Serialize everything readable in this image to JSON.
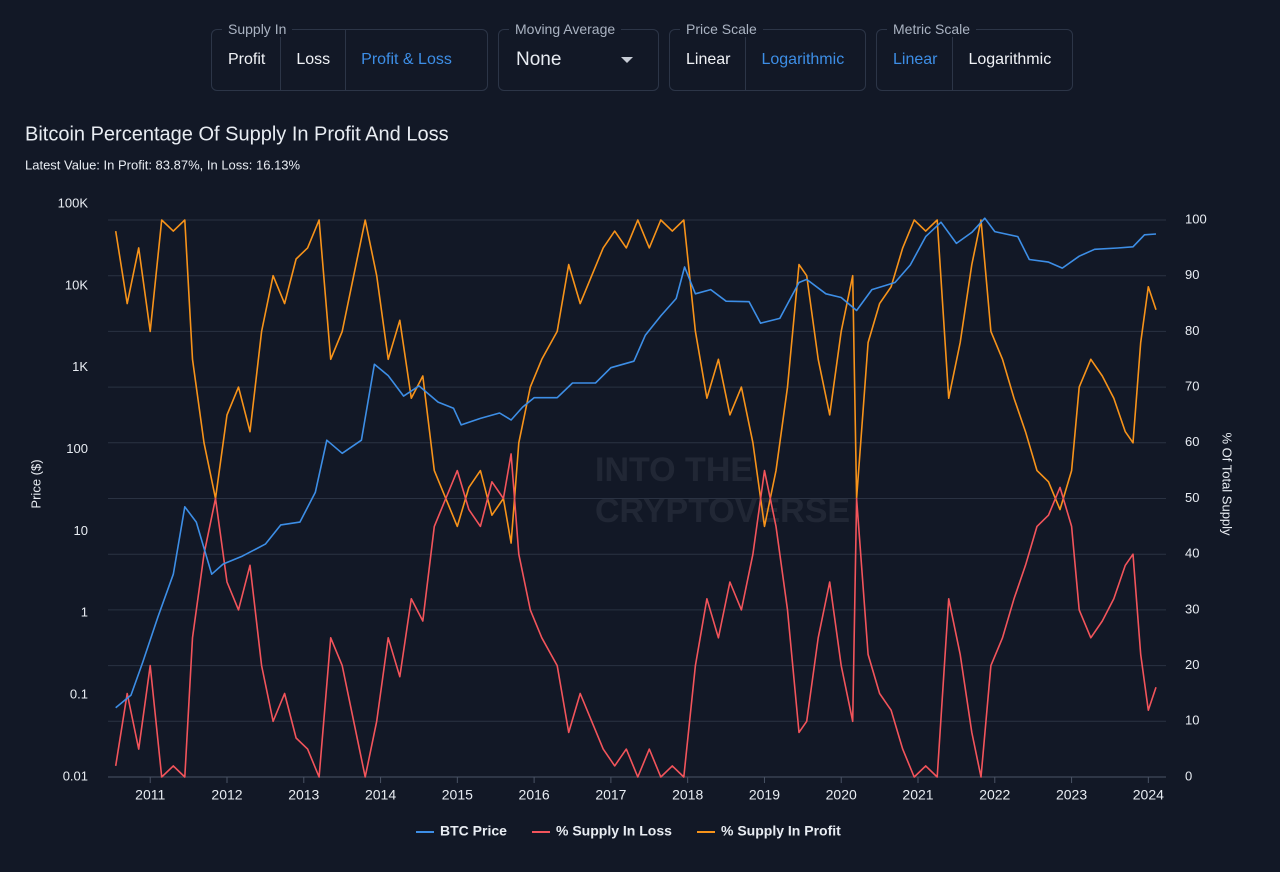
{
  "controls": [
    {
      "label": "Supply In",
      "options": [
        "Profit",
        "Loss",
        "Profit & Loss"
      ],
      "selected": 2
    },
    {
      "label": "Moving Average",
      "value": "None"
    },
    {
      "label": "Price Scale",
      "options": [
        "Linear",
        "Logarithmic"
      ],
      "selected": 1
    },
    {
      "label": "Metric Scale",
      "options": [
        "Linear",
        "Logarithmic"
      ],
      "selected": 0
    }
  ],
  "chart_data": {
    "type": "line",
    "title": "Bitcoin Percentage Of Supply In Profit And Loss",
    "subtitle": "Latest Value: In Profit: 83.87%, In Loss: 16.13%",
    "y_label": "Price ($)",
    "y2_label": "% Of Total Supply",
    "watermark": [
      "INTO THE",
      "CRYPTOVERSE"
    ],
    "xlim": [
      2010.45,
      2024.23
    ],
    "xticks": [
      2011,
      2012,
      2013,
      2014,
      2015,
      2016,
      2017,
      2018,
      2019,
      2020,
      2021,
      2022,
      2023,
      2024
    ],
    "ylim": [
      0.01,
      100000
    ],
    "y_scale": "log",
    "yticks": [
      0.01,
      0.1,
      1,
      10,
      100,
      {
        "value": 1000,
        "label": "1K"
      },
      {
        "value": 10000,
        "label": "10K"
      },
      {
        "value": 100000,
        "label": "100K"
      }
    ],
    "y2lim": [
      0,
      100
    ],
    "y2ticks": [
      0,
      10,
      20,
      30,
      40,
      50,
      60,
      70,
      80,
      90,
      100
    ],
    "grid": true,
    "legend": "bottom",
    "series": [
      {
        "name": "BTC Price",
        "color": "#3d8ee6",
        "x": [
          2010.55,
          2010.75,
          2010.9,
          2011.1,
          2011.3,
          2011.45,
          2011.6,
          2011.8,
          2011.95,
          2012.2,
          2012.5,
          2012.7,
          2012.95,
          2013.15,
          2013.3,
          2013.5,
          2013.75,
          2013.92,
          2014.1,
          2014.3,
          2014.5,
          2014.75,
          2014.95,
          2015.05,
          2015.3,
          2015.55,
          2015.7,
          2015.85,
          2016.0,
          2016.3,
          2016.5,
          2016.8,
          2017.0,
          2017.3,
          2017.45,
          2017.65,
          2017.85,
          2017.96,
          2018.1,
          2018.3,
          2018.5,
          2018.8,
          2018.95,
          2019.2,
          2019.45,
          2019.55,
          2019.8,
          2020.0,
          2020.2,
          2020.4,
          2020.7,
          2020.9,
          2021.1,
          2021.3,
          2021.5,
          2021.7,
          2021.87,
          2022.0,
          2022.3,
          2022.45,
          2022.7,
          2022.88,
          2023.1,
          2023.3,
          2023.6,
          2023.8,
          2023.95,
          2024.1
        ],
        "values": [
          0.07,
          0.1,
          0.25,
          0.9,
          3,
          20,
          13,
          3,
          4,
          5,
          7,
          12,
          13,
          30,
          130,
          90,
          130,
          1100,
          800,
          450,
          600,
          380,
          320,
          200,
          240,
          280,
          230,
          330,
          430,
          430,
          650,
          650,
          1000,
          1200,
          2500,
          4300,
          7000,
          17000,
          8000,
          9000,
          6500,
          6400,
          3500,
          4000,
          11000,
          12000,
          8000,
          7200,
          5000,
          9000,
          11000,
          18000,
          40000,
          60000,
          33000,
          45000,
          67000,
          46000,
          40000,
          21000,
          19500,
          16500,
          23000,
          28000,
          29000,
          30000,
          42000,
          43000
        ]
      },
      {
        "name": "% Supply In Loss",
        "color": "#f2545b",
        "axis": "y2",
        "x": [
          2010.55,
          2010.7,
          2010.85,
          2011.0,
          2011.15,
          2011.3,
          2011.45,
          2011.55,
          2011.7,
          2011.85,
          2012.0,
          2012.15,
          2012.3,
          2012.45,
          2012.6,
          2012.75,
          2012.9,
          2013.05,
          2013.2,
          2013.35,
          2013.5,
          2013.65,
          2013.8,
          2013.95,
          2014.1,
          2014.25,
          2014.4,
          2014.55,
          2014.7,
          2014.85,
          2015.0,
          2015.15,
          2015.3,
          2015.45,
          2015.6,
          2015.7,
          2015.8,
          2015.95,
          2016.1,
          2016.3,
          2016.45,
          2016.6,
          2016.75,
          2016.9,
          2017.05,
          2017.2,
          2017.35,
          2017.5,
          2017.65,
          2017.8,
          2017.95,
          2018.1,
          2018.25,
          2018.4,
          2018.55,
          2018.7,
          2018.85,
          2019.0,
          2019.15,
          2019.3,
          2019.45,
          2019.55,
          2019.7,
          2019.85,
          2020.0,
          2020.15,
          2020.2,
          2020.35,
          2020.5,
          2020.65,
          2020.8,
          2020.95,
          2021.1,
          2021.25,
          2021.4,
          2021.55,
          2021.7,
          2021.82,
          2021.95,
          2022.1,
          2022.25,
          2022.4,
          2022.55,
          2022.7,
          2022.85,
          2023.0,
          2023.1,
          2023.25,
          2023.4,
          2023.55,
          2023.7,
          2023.8,
          2023.9,
          2024.0,
          2024.1
        ],
        "values": [
          2,
          15,
          5,
          20,
          0,
          2,
          0,
          25,
          40,
          50,
          35,
          30,
          38,
          20,
          10,
          15,
          7,
          5,
          0,
          25,
          20,
          10,
          0,
          10,
          25,
          18,
          32,
          28,
          45,
          50,
          55,
          48,
          45,
          53,
          50,
          58,
          40,
          30,
          25,
          20,
          8,
          15,
          10,
          5,
          2,
          5,
          0,
          5,
          0,
          2,
          0,
          20,
          32,
          25,
          35,
          30,
          40,
          55,
          45,
          30,
          8,
          10,
          25,
          35,
          20,
          10,
          50,
          22,
          15,
          12,
          5,
          0,
          2,
          0,
          32,
          22,
          8,
          0,
          20,
          25,
          32,
          38,
          45,
          47,
          52,
          45,
          30,
          25,
          28,
          32,
          38,
          40,
          22,
          12,
          16.13
        ]
      },
      {
        "name": "% Supply In Profit",
        "color": "#f7931a",
        "axis": "y2",
        "x": [
          2010.55,
          2010.7,
          2010.85,
          2011.0,
          2011.15,
          2011.3,
          2011.45,
          2011.55,
          2011.7,
          2011.85,
          2012.0,
          2012.15,
          2012.3,
          2012.45,
          2012.6,
          2012.75,
          2012.9,
          2013.05,
          2013.2,
          2013.35,
          2013.5,
          2013.65,
          2013.8,
          2013.95,
          2014.1,
          2014.25,
          2014.4,
          2014.55,
          2014.7,
          2014.85,
          2015.0,
          2015.15,
          2015.3,
          2015.45,
          2015.6,
          2015.7,
          2015.8,
          2015.95,
          2016.1,
          2016.3,
          2016.45,
          2016.6,
          2016.75,
          2016.9,
          2017.05,
          2017.2,
          2017.35,
          2017.5,
          2017.65,
          2017.8,
          2017.95,
          2018.1,
          2018.25,
          2018.4,
          2018.55,
          2018.7,
          2018.85,
          2019.0,
          2019.15,
          2019.3,
          2019.45,
          2019.55,
          2019.7,
          2019.85,
          2020.0,
          2020.15,
          2020.2,
          2020.35,
          2020.5,
          2020.65,
          2020.8,
          2020.95,
          2021.1,
          2021.25,
          2021.4,
          2021.55,
          2021.7,
          2021.82,
          2021.95,
          2022.1,
          2022.25,
          2022.4,
          2022.55,
          2022.7,
          2022.85,
          2023.0,
          2023.1,
          2023.25,
          2023.4,
          2023.55,
          2023.7,
          2023.8,
          2023.9,
          2024.0,
          2024.1
        ],
        "values": [
          98,
          85,
          95,
          80,
          100,
          98,
          100,
          75,
          60,
          50,
          65,
          70,
          62,
          80,
          90,
          85,
          93,
          95,
          100,
          75,
          80,
          90,
          100,
          90,
          75,
          82,
          68,
          72,
          55,
          50,
          45,
          52,
          55,
          47,
          50,
          42,
          60,
          70,
          75,
          80,
          92,
          85,
          90,
          95,
          98,
          95,
          100,
          95,
          100,
          98,
          100,
          80,
          68,
          75,
          65,
          70,
          60,
          45,
          55,
          70,
          92,
          90,
          75,
          65,
          80,
          90,
          50,
          78,
          85,
          88,
          95,
          100,
          98,
          100,
          68,
          78,
          92,
          100,
          80,
          75,
          68,
          62,
          55,
          53,
          48,
          55,
          70,
          75,
          72,
          68,
          62,
          60,
          78,
          88,
          83.87
        ]
      }
    ]
  }
}
